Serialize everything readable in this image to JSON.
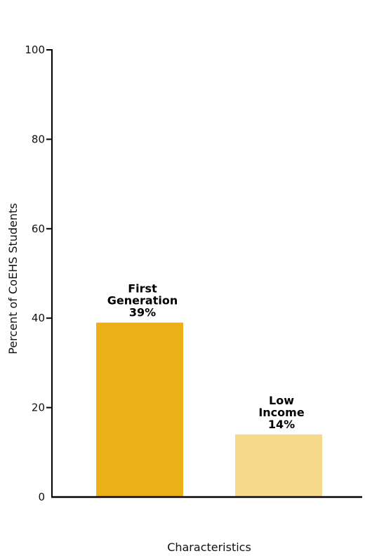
{
  "chart_data": {
    "type": "bar",
    "categories": [
      "First Generation",
      "Low Income"
    ],
    "values": [
      39,
      14
    ],
    "value_labels": [
      "39%",
      "14%"
    ],
    "bar_label_lines": [
      [
        "First",
        "Generation",
        "39%"
      ],
      [
        "Low",
        "Income",
        "14%"
      ]
    ],
    "colors": [
      "#EBB018",
      "#F7D98B"
    ],
    "xlabel": "Characteristics",
    "ylabel": "Percent of CoEHS Students",
    "ylim": [
      0,
      100
    ],
    "yticks": [
      0,
      20,
      40,
      60,
      80,
      100
    ],
    "grid": false,
    "legend": "none"
  }
}
